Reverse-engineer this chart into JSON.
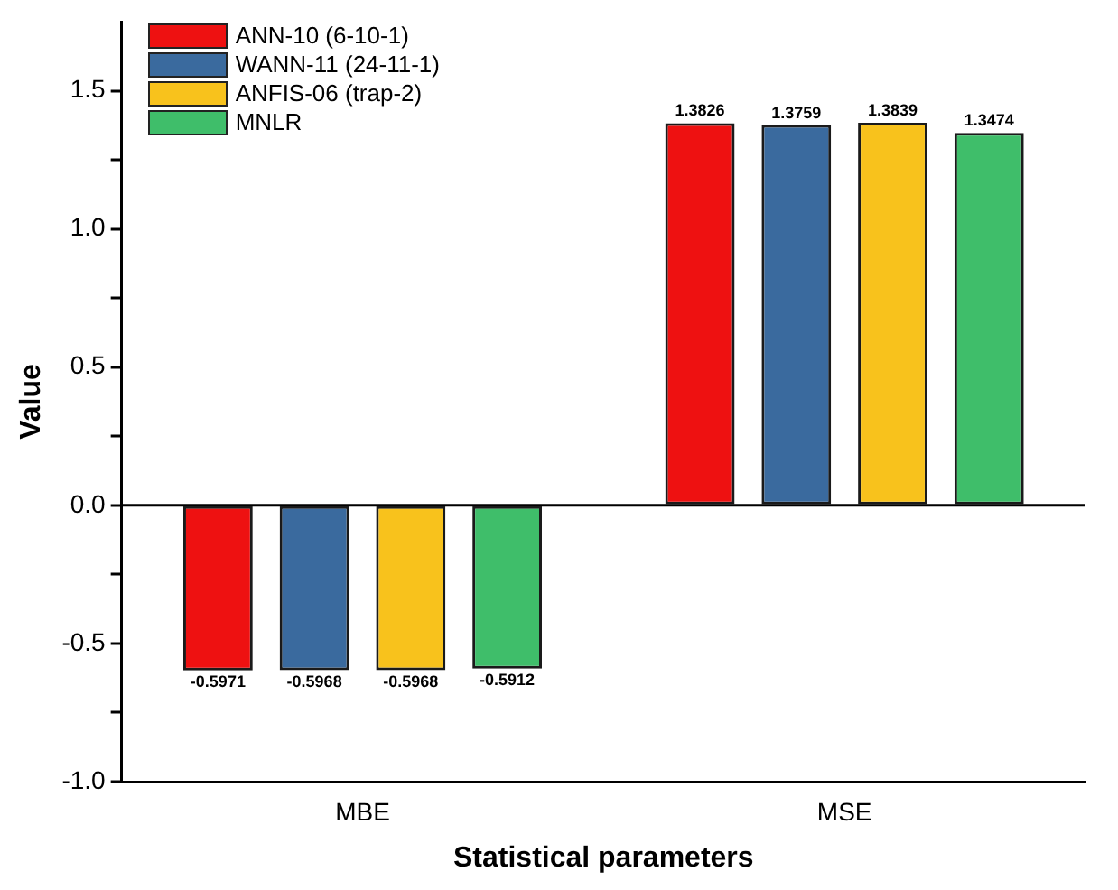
{
  "chart_data": {
    "type": "bar",
    "xlabel": "Statistical parameters",
    "ylabel": "Value",
    "categories": [
      "MBE",
      "MSE"
    ],
    "series": [
      {
        "name": "ANN-10 (6-10-1)",
        "color": "#ee1111",
        "values": [
          -0.5971,
          1.3826
        ]
      },
      {
        "name": "WANN-11 (24-11-1)",
        "color": "#3a6a9e",
        "values": [
          -0.5968,
          1.3759
        ]
      },
      {
        "name": "ANFIS-06 (trap-2)",
        "color": "#f8c21c",
        "values": [
          -0.5968,
          1.3839
        ]
      },
      {
        "name": "MNLR",
        "color": "#3fbe6a",
        "values": [
          -0.5912,
          1.3474
        ]
      }
    ],
    "ylim": [
      -1.0,
      1.75
    ],
    "yticks": [
      {
        "value": -1.0,
        "label": "-1.0"
      },
      {
        "value": -0.75,
        "label": null
      },
      {
        "value": -0.5,
        "label": "-0.5"
      },
      {
        "value": -0.25,
        "label": null
      },
      {
        "value": 0,
        "label": "0.0"
      },
      {
        "value": 0.25,
        "label": null
      },
      {
        "value": 0.5,
        "label": "0.5"
      },
      {
        "value": 0.75,
        "label": null
      },
      {
        "value": 1.0,
        "label": "1.0"
      },
      {
        "value": 1.25,
        "label": null
      },
      {
        "value": 1.5,
        "label": "1.5"
      }
    ],
    "ref_lines": [
      {
        "axis": "y",
        "value": 0
      }
    ],
    "data_labels": true,
    "grid": false,
    "legend": "top left"
  }
}
